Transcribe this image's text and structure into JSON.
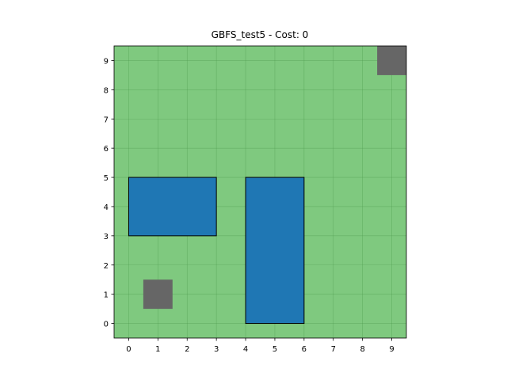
{
  "chart_data": {
    "type": "heatmap",
    "title": "GBFS_test5 - Cost: 0",
    "xlabel": "",
    "ylabel": "",
    "xlim": [
      -0.5,
      9.5
    ],
    "ylim": [
      -0.5,
      9.5
    ],
    "xticks": [
      0,
      1,
      2,
      3,
      4,
      5,
      6,
      7,
      8,
      9
    ],
    "yticks": [
      0,
      1,
      2,
      3,
      4,
      5,
      6,
      7,
      8,
      9
    ],
    "grid": true,
    "background_color": "#7fc97f",
    "grid_color": "#4f9a4f",
    "obstacles": [
      {
        "x0": 0,
        "y0": 3,
        "x1": 3,
        "y1": 5
      },
      {
        "x0": 4,
        "y0": 0,
        "x1": 6,
        "y1": 5
      }
    ],
    "obstacle_color": "#1f77b4",
    "markers": [
      {
        "role": "start",
        "x": 1,
        "y": 1
      },
      {
        "role": "goal",
        "x": 9,
        "y": 9
      }
    ],
    "marker_color": "#666666"
  }
}
